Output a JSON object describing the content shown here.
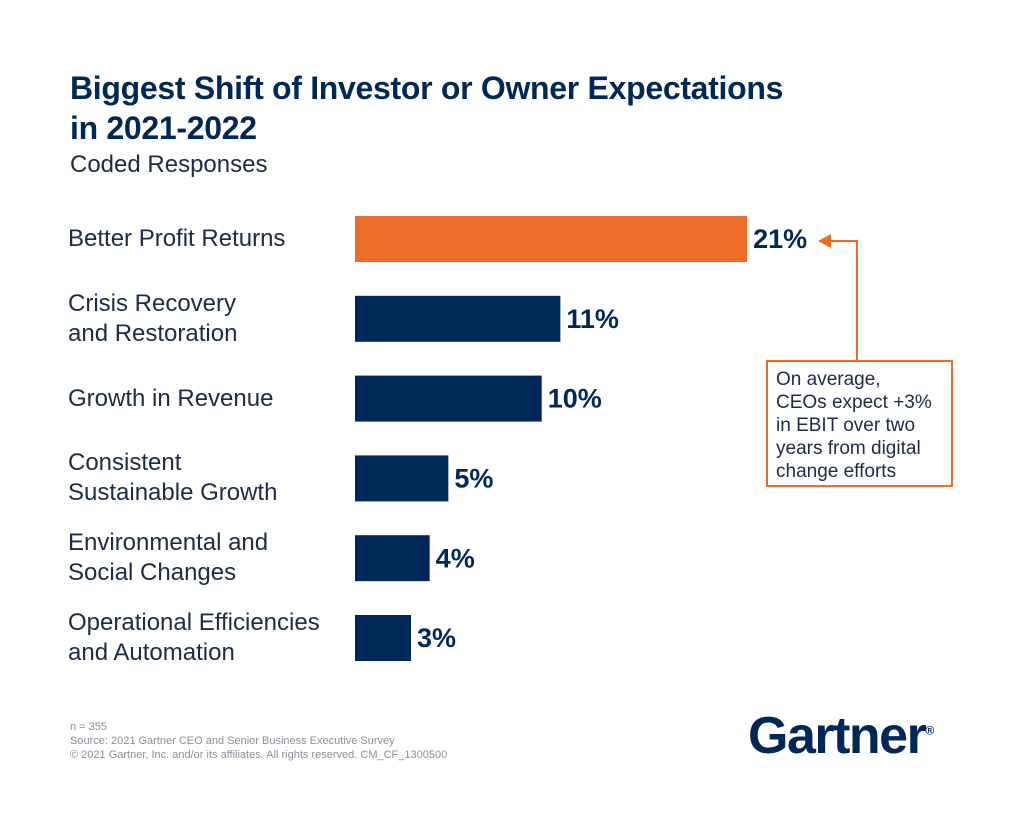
{
  "chart_data": {
    "type": "hbar",
    "title": "Biggest Shift of Investor or Owner Expectations\nin 2021-2022",
    "subtitle": "Coded Responses",
    "categories": [
      "Better Profit Returns",
      "Crisis Recovery\nand Restoration",
      "Growth in Revenue",
      "Consistent\nSustainable Growth",
      "Environmental and\nSocial Changes",
      "Operational Efficiencies\nand  Automation"
    ],
    "values": [
      21,
      11,
      10,
      5,
      4,
      3
    ],
    "value_labels": [
      "21%",
      "11%",
      "10%",
      "5%",
      "4%",
      "3%"
    ],
    "colors": [
      "#ec6c2a",
      "#002856",
      "#002856",
      "#002856",
      "#002856",
      "#002856"
    ],
    "annotation": "On average,\nCEOs expect +3%\nin EBIT over two\nyears from digital\nchange efforts",
    "footnotes": [
      "n = 355",
      "Source: 2021 Gartner CEO and Senior Business Executive Survey",
      "© 2021 Gartner, Inc. and/or its affiliates. All rights reserved. CM_CF_1300500"
    ],
    "logo": "Gartner",
    "logo_mark": "®"
  }
}
